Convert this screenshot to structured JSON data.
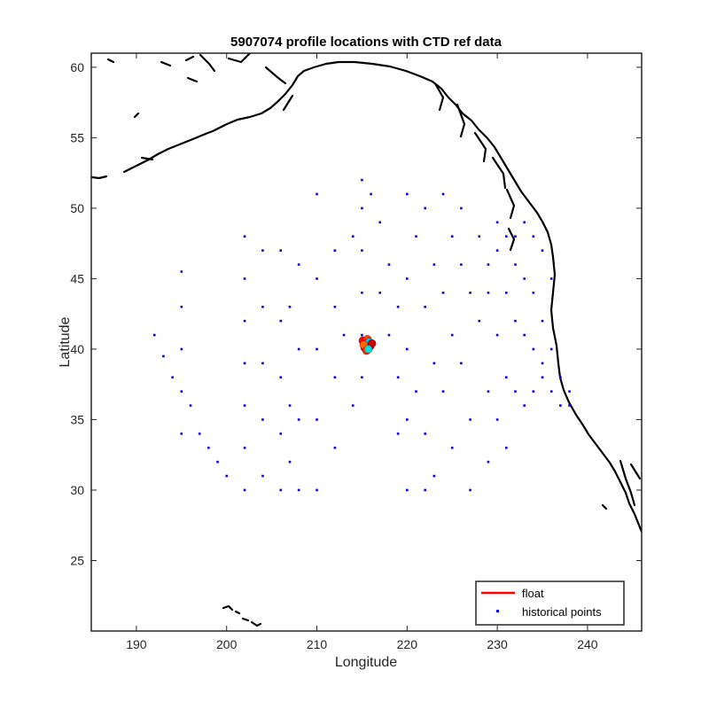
{
  "chart_data": {
    "type": "scatter",
    "title": "5907074 profile locations with CTD ref data",
    "xlabel": "Longitude",
    "ylabel": "Latitude",
    "xlim": [
      185,
      246
    ],
    "ylim": [
      20,
      61
    ],
    "xticks": [
      190,
      200,
      210,
      220,
      230,
      240
    ],
    "yticks": [
      25,
      30,
      35,
      40,
      45,
      50,
      55,
      60
    ],
    "grid": false,
    "legend_position": "bottom-right",
    "colors": {
      "float": "#ff0000",
      "historical": "#0000ff",
      "coast": "#000000"
    },
    "legend": [
      {
        "label": "float",
        "marker": "line",
        "color": "#ff0000"
      },
      {
        "label": "historical points",
        "marker": "dot",
        "color": "#0000ff"
      }
    ],
    "series": [
      {
        "name": "historical points",
        "style": "dots",
        "approximate": true,
        "points": [
          [
            192,
            41
          ],
          [
            193,
            39.5
          ],
          [
            194,
            38
          ],
          [
            195,
            45.5
          ],
          [
            195,
            43
          ],
          [
            195,
            40
          ],
          [
            195,
            37
          ],
          [
            195,
            34
          ],
          [
            196,
            36
          ],
          [
            197,
            34
          ],
          [
            198,
            33
          ],
          [
            199,
            32
          ],
          [
            200,
            31
          ],
          [
            202,
            48
          ],
          [
            202,
            45
          ],
          [
            202,
            42
          ],
          [
            202,
            39
          ],
          [
            202,
            36
          ],
          [
            202,
            33
          ],
          [
            202,
            30
          ],
          [
            204,
            47
          ],
          [
            204,
            43
          ],
          [
            204,
            39
          ],
          [
            204,
            35
          ],
          [
            204,
            31
          ],
          [
            206,
            47
          ],
          [
            206,
            42
          ],
          [
            206,
            38
          ],
          [
            206,
            34
          ],
          [
            206,
            30
          ],
          [
            207,
            43
          ],
          [
            207,
            36
          ],
          [
            207,
            32
          ],
          [
            208,
            46
          ],
          [
            208,
            40
          ],
          [
            208,
            35
          ],
          [
            208,
            30
          ],
          [
            210,
            51
          ],
          [
            210,
            45
          ],
          [
            210,
            40
          ],
          [
            210,
            35
          ],
          [
            210,
            30
          ],
          [
            212,
            47
          ],
          [
            212,
            43
          ],
          [
            212,
            38
          ],
          [
            212,
            33
          ],
          [
            213,
            41
          ],
          [
            214,
            48
          ],
          [
            214,
            36
          ],
          [
            215,
            52
          ],
          [
            215,
            50
          ],
          [
            215,
            47
          ],
          [
            215,
            44
          ],
          [
            215,
            41
          ],
          [
            215,
            38
          ],
          [
            216,
            51
          ],
          [
            217,
            49
          ],
          [
            217,
            44
          ],
          [
            218,
            46
          ],
          [
            218,
            41
          ],
          [
            219,
            43
          ],
          [
            219,
            38
          ],
          [
            219,
            34
          ],
          [
            220,
            51
          ],
          [
            220,
            45
          ],
          [
            220,
            40
          ],
          [
            220,
            35
          ],
          [
            220,
            30
          ],
          [
            221,
            48
          ],
          [
            221,
            37
          ],
          [
            222,
            50
          ],
          [
            222,
            43
          ],
          [
            222,
            34
          ],
          [
            222,
            30
          ],
          [
            223,
            46
          ],
          [
            223,
            39
          ],
          [
            223,
            31
          ],
          [
            224,
            51
          ],
          [
            224,
            44
          ],
          [
            224,
            37
          ],
          [
            225,
            48
          ],
          [
            225,
            41
          ],
          [
            225,
            33
          ],
          [
            226,
            50
          ],
          [
            226,
            46
          ],
          [
            226,
            39
          ],
          [
            227,
            44
          ],
          [
            227,
            35
          ],
          [
            227,
            30
          ],
          [
            228,
            48
          ],
          [
            228,
            42
          ],
          [
            229,
            46
          ],
          [
            229,
            44
          ],
          [
            229,
            37
          ],
          [
            229,
            32
          ],
          [
            230,
            49
          ],
          [
            230,
            47
          ],
          [
            230,
            41
          ],
          [
            230,
            35
          ],
          [
            231,
            48
          ],
          [
            231,
            44
          ],
          [
            231,
            38
          ],
          [
            231,
            33
          ],
          [
            232,
            48
          ],
          [
            232,
            46
          ],
          [
            232,
            42
          ],
          [
            232,
            37
          ],
          [
            233,
            49
          ],
          [
            233,
            45
          ],
          [
            233,
            41
          ],
          [
            233,
            36
          ],
          [
            234,
            48
          ],
          [
            234,
            44
          ],
          [
            234,
            40
          ],
          [
            234,
            37
          ],
          [
            235,
            47
          ],
          [
            235,
            42
          ],
          [
            235,
            39
          ],
          [
            235,
            38
          ],
          [
            236,
            45
          ],
          [
            236,
            40
          ],
          [
            236,
            37
          ],
          [
            237,
            38
          ],
          [
            237,
            36
          ],
          [
            238,
            37
          ],
          [
            238,
            36
          ]
        ]
      },
      {
        "name": "float",
        "style": "cluster",
        "approximate": true,
        "points": [
          [
            215.1,
            40.6
          ],
          [
            215.3,
            40.1
          ],
          [
            215.6,
            40.7
          ],
          [
            215.9,
            40.2
          ],
          [
            215.4,
            40.4
          ],
          [
            215.8,
            40.5
          ],
          [
            215.2,
            40.3
          ],
          [
            216.1,
            40.4
          ],
          [
            215.5,
            39.9
          ],
          [
            215.7,
            40.0
          ]
        ]
      }
    ]
  }
}
